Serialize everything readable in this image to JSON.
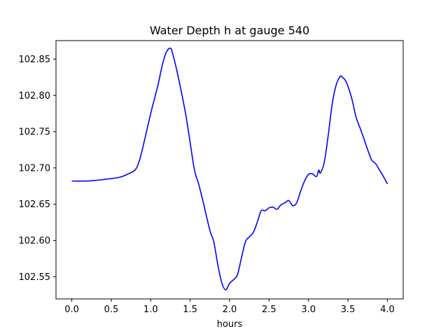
{
  "chart_data": {
    "type": "line",
    "title": "Water Depth h at gauge 540",
    "xlabel": "hours",
    "ylabel": "",
    "xlim": [
      -0.2,
      4.2
    ],
    "ylim": [
      102.5195,
      102.8755
    ],
    "xticks": [
      "0.0",
      "0.5",
      "1.0",
      "1.5",
      "2.0",
      "2.5",
      "3.0",
      "3.5",
      "4.0"
    ],
    "xtick_values": [
      0.0,
      0.5,
      1.0,
      1.5,
      2.0,
      2.5,
      3.0,
      3.5,
      4.0
    ],
    "yticks": [
      "102.55",
      "102.60",
      "102.65",
      "102.70",
      "102.75",
      "102.80",
      "102.85"
    ],
    "ytick_values": [
      102.55,
      102.6,
      102.65,
      102.7,
      102.75,
      102.8,
      102.85
    ],
    "grid": false,
    "colors": {
      "line": "#0000ff",
      "axes": "#000000"
    },
    "series": [
      {
        "x": [
          0.0,
          0.2,
          0.4,
          0.6,
          0.7,
          0.8,
          0.85,
          0.9,
          1.0,
          1.05,
          1.1,
          1.15,
          1.2,
          1.25,
          1.28,
          1.35,
          1.45,
          1.55,
          1.6,
          1.65,
          1.75,
          1.8,
          1.85,
          1.9,
          1.95,
          2.0,
          2.05,
          2.1,
          2.15,
          2.2,
          2.25,
          2.3,
          2.35,
          2.4,
          2.45,
          2.5,
          2.55,
          2.6,
          2.65,
          2.7,
          2.75,
          2.8,
          2.85,
          2.9,
          2.95,
          3.0,
          3.05,
          3.1,
          3.13,
          3.15,
          3.2,
          3.25,
          3.3,
          3.35,
          3.4,
          3.43,
          3.48,
          3.55,
          3.6,
          3.65,
          3.7,
          3.75,
          3.8,
          3.85,
          3.9,
          3.95,
          4.0
        ],
        "y": [
          102.682,
          102.682,
          102.684,
          102.687,
          102.691,
          102.697,
          102.708,
          102.728,
          102.775,
          102.796,
          102.818,
          102.843,
          102.86,
          102.865,
          102.857,
          102.825,
          102.77,
          102.7,
          102.681,
          102.66,
          102.614,
          102.598,
          102.567,
          102.542,
          102.532,
          102.541,
          102.546,
          102.553,
          102.576,
          102.598,
          102.605,
          102.611,
          102.625,
          102.641,
          102.641,
          102.645,
          102.646,
          102.643,
          102.649,
          102.652,
          102.655,
          102.648,
          102.652,
          102.668,
          102.682,
          102.691,
          102.692,
          102.688,
          102.697,
          102.693,
          102.708,
          102.745,
          102.788,
          102.814,
          102.826,
          102.825,
          102.818,
          102.795,
          102.771,
          102.756,
          102.741,
          102.725,
          102.711,
          102.706,
          102.697,
          102.688,
          102.678
        ]
      }
    ]
  }
}
